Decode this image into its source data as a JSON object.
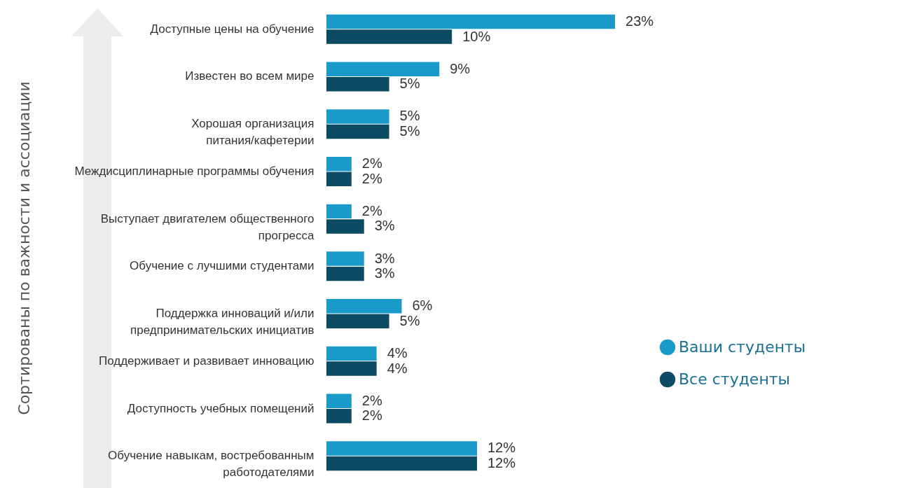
{
  "chart_data": {
    "type": "bar",
    "orientation": "horizontal",
    "ylabel": "Сортированы по важности и ассоциации",
    "categories": [
      "Доступные цены на обучение",
      "Известен во всем мире",
      "Хорошая организация питания/кафетерии",
      "Междисциплинарные программы обучения",
      "Выступает двигателем общественного прогресса",
      "Обучение с лучшими студентами",
      "Поддержка инноваций и/или предпринимательских инициатив",
      "Поддерживает и развивает инновацию",
      "Доступность учебных помещений",
      "Обучение навыкам, востребованным работодателями"
    ],
    "series": [
      {
        "name": "Ваши студенты",
        "color": "#1a9ac9",
        "values": [
          23,
          9,
          5,
          2,
          2,
          3,
          6,
          4,
          2,
          12
        ],
        "value_labels": [
          "23%",
          "9%",
          "5%",
          "2%",
          "2%",
          "3%",
          "6%",
          "4%",
          "2%",
          "12%"
        ]
      },
      {
        "name": "Все студенты",
        "color": "#0d4a63",
        "values": [
          10,
          5,
          5,
          2,
          3,
          3,
          5,
          4,
          2,
          12
        ],
        "value_labels": [
          "10%",
          "5%",
          "5%",
          "2%",
          "3%",
          "3%",
          "5%",
          "4%",
          "2%",
          "12%"
        ]
      }
    ],
    "legend": "right"
  }
}
